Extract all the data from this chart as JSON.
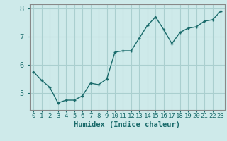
{
  "x": [
    0,
    1,
    2,
    3,
    4,
    5,
    6,
    7,
    8,
    9,
    10,
    11,
    12,
    13,
    14,
    15,
    16,
    17,
    18,
    19,
    20,
    21,
    22,
    23
  ],
  "y": [
    5.75,
    5.45,
    5.2,
    4.65,
    4.75,
    4.75,
    4.9,
    5.35,
    5.3,
    5.5,
    6.45,
    6.5,
    6.5,
    6.95,
    7.4,
    7.7,
    7.25,
    6.75,
    7.15,
    7.3,
    7.35,
    7.55,
    7.6,
    7.9
  ],
  "line_color": "#1a6b6b",
  "marker": "+",
  "marker_size": 3,
  "linewidth": 1.0,
  "xlabel": "Humidex (Indice chaleur)",
  "xlabel_fontsize": 7.5,
  "ylim": [
    4.4,
    8.15
  ],
  "xlim": [
    -0.5,
    23.5
  ],
  "yticks": [
    5,
    6,
    7,
    8
  ],
  "xtick_labels": [
    "0",
    "1",
    "2",
    "3",
    "4",
    "5",
    "6",
    "7",
    "8",
    "9",
    "10",
    "11",
    "12",
    "13",
    "14",
    "15",
    "16",
    "17",
    "18",
    "19",
    "20",
    "21",
    "22",
    "23"
  ],
  "bg_color": "#ceeaea",
  "grid_color": "#aacfcf",
  "tick_color": "#1a6b6b",
  "label_color": "#1a6b6b",
  "tick_fontsize": 6.5,
  "ytick_fontsize": 7.5
}
